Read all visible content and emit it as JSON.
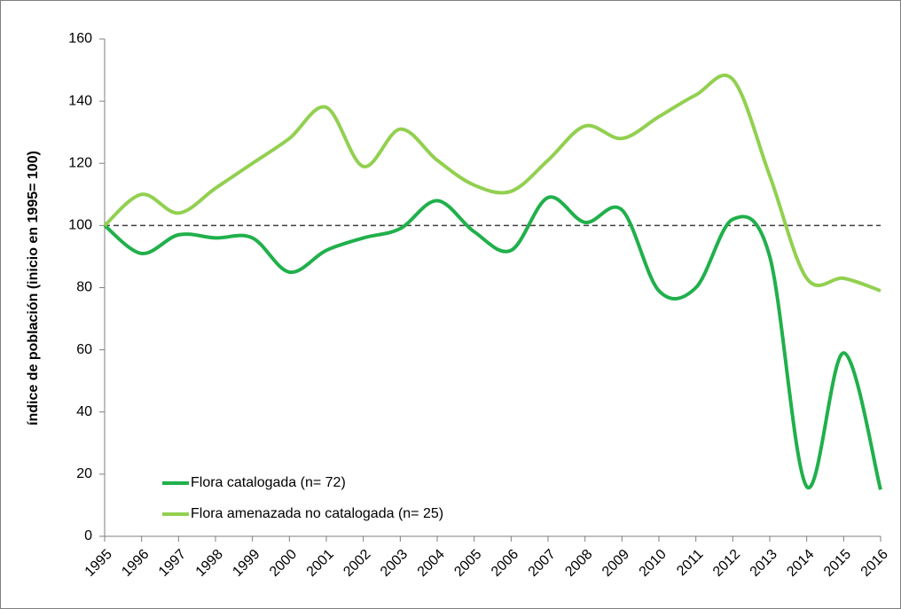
{
  "chart_data": {
    "type": "line",
    "y_label": "índice de población  (inicio en 1995= 100)",
    "categories": [
      "1995",
      "1996",
      "1997",
      "1998",
      "1999",
      "2000",
      "2001",
      "2002",
      "2003",
      "2004",
      "2005",
      "2006",
      "2007",
      "2008",
      "2009",
      "2010",
      "2011",
      "2012",
      "2013",
      "2014",
      "2015",
      "2016"
    ],
    "series": [
      {
        "name": "Flora catalogada (n= 72)",
        "color": "#20b04b",
        "values": [
          100,
          91,
          97,
          96,
          96,
          85,
          92,
          96,
          99,
          108,
          98,
          92,
          109,
          101,
          105,
          79,
          80,
          102,
          90,
          16,
          59,
          15
        ]
      },
      {
        "name": "Flora amenazada  no catalogada (n= 25)",
        "color": "#92d050",
        "values": [
          100,
          110,
          104,
          112,
          120,
          128,
          138,
          119,
          131,
          121,
          113,
          111,
          121,
          132,
          128,
          135,
          142,
          147,
          116,
          83,
          83,
          79
        ]
      }
    ],
    "reference_line": 100,
    "ylim": [
      0,
      160
    ],
    "yticks": [
      0,
      20,
      40,
      60,
      80,
      100,
      120,
      140,
      160
    ]
  }
}
